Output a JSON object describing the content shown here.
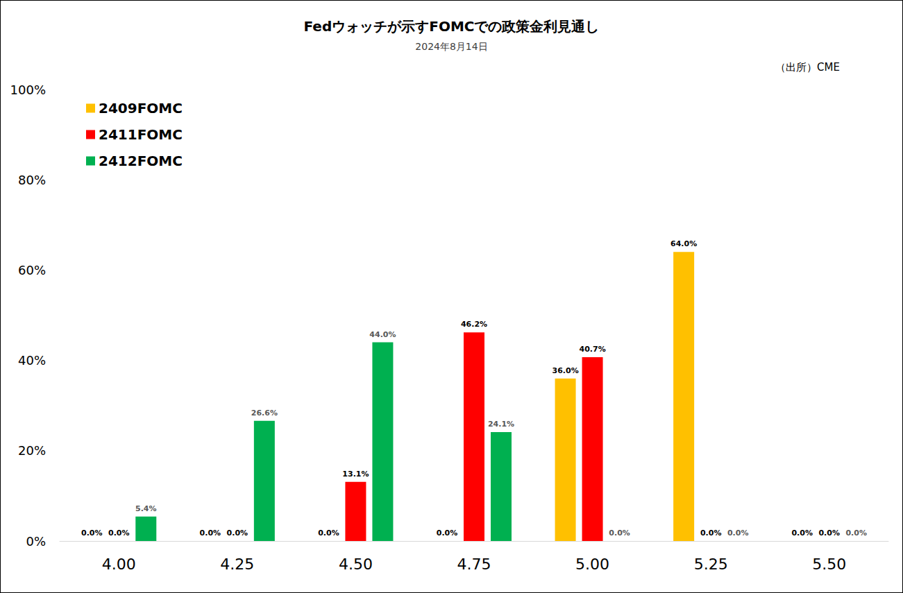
{
  "chart_data": {
    "type": "bar",
    "title": "Fedウォッチが示すFOMCでの政策金利見通し",
    "subtitle": "2024年8月14日",
    "annotations": [
      "（出所）CME"
    ],
    "categories": [
      "4.00",
      "4.25",
      "4.50",
      "4.75",
      "5.00",
      "5.25",
      "5.50"
    ],
    "series": [
      {
        "name": "2409FOMC",
        "color": "#ffc000",
        "values": [
          0,
          0,
          0,
          0,
          36.0,
          64.0,
          0
        ],
        "value_labels": [
          "0.0%",
          "0.0%",
          "0.0%",
          "0.0%",
          "36.0%",
          "64.0%",
          "0.0%"
        ]
      },
      {
        "name": "2411FOMC",
        "color": "#ff0000",
        "values": [
          0,
          0,
          13.1,
          46.2,
          40.7,
          0,
          0
        ],
        "value_labels": [
          "0.0%",
          "0.0%",
          "13.1%",
          "46.2%",
          "40.7%",
          "0.0%",
          "0.0%"
        ]
      },
      {
        "name": "2412FOMC",
        "color": "#00b050",
        "values": [
          5.4,
          26.6,
          44.0,
          24.1,
          0,
          0,
          0
        ],
        "value_labels": [
          "5.4%",
          "26.6%",
          "44.0%",
          "24.1%",
          "0.0%",
          "0.0%",
          "0.0%"
        ]
      }
    ],
    "ylim": [
      0,
      100
    ],
    "yticks": [
      {
        "value": 0,
        "label": "0%"
      },
      {
        "value": 20,
        "label": "20%"
      },
      {
        "value": 40,
        "label": "40%"
      },
      {
        "value": 60,
        "label": "60%"
      },
      {
        "value": 80,
        "label": "80%"
      },
      {
        "value": 100,
        "label": "100%"
      }
    ],
    "grid": false,
    "legend": "upper left",
    "data_labels": true
  }
}
